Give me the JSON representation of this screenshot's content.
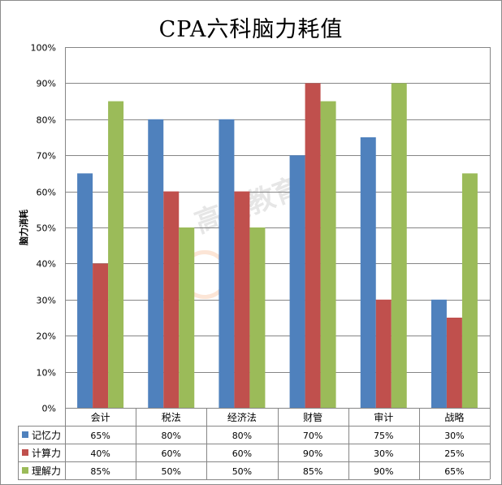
{
  "chart_data": {
    "type": "bar",
    "title": "CPA六科脑力耗值",
    "ylabel": "脑力消耗",
    "xlabel": "",
    "ylim": [
      0,
      100
    ],
    "yticks": [
      "0%",
      "10%",
      "20%",
      "30%",
      "40%",
      "50%",
      "60%",
      "70%",
      "80%",
      "90%",
      "100%"
    ],
    "categories": [
      "会计",
      "税法",
      "经济法",
      "财管",
      "审计",
      "战略"
    ],
    "series": [
      {
        "name": "记忆力",
        "color": "#4f81bd",
        "values": [
          65,
          80,
          80,
          70,
          75,
          30
        ],
        "labels": [
          "65%",
          "80%",
          "80%",
          "70%",
          "75%",
          "30%"
        ]
      },
      {
        "name": "计算力",
        "color": "#c0504d",
        "values": [
          40,
          60,
          60,
          90,
          30,
          25
        ],
        "labels": [
          "40%",
          "60%",
          "60%",
          "90%",
          "30%",
          "25%"
        ]
      },
      {
        "name": "理解力",
        "color": "#9bbb59",
        "values": [
          85,
          50,
          50,
          85,
          90,
          65
        ],
        "labels": [
          "85%",
          "50%",
          "50%",
          "85%",
          "90%",
          "65%"
        ]
      }
    ],
    "grid": true,
    "legend": "data-table"
  },
  "watermark": {
    "text": "高顿教育"
  }
}
